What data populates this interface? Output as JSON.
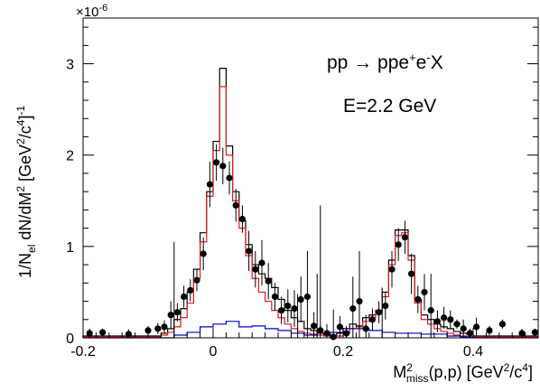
{
  "chart_data": {
    "type": "scatter",
    "multiplier_label": "×10",
    "multiplier_exponent": "-6",
    "ylabel": {
      "p1": "1/N",
      "p2": "el",
      "p3": " dN/dM",
      "p4": "2",
      "p5": " [GeV",
      "p6": "2",
      "p7": "/c",
      "p8": "4",
      "p9": "]",
      "p10": "-1"
    },
    "xlabel": {
      "p1": "M",
      "p2": "2",
      "p3": "miss",
      "p4": "(p,p) [GeV",
      "p5": "2",
      "p6": "/c",
      "p7": "4",
      "p8": "]"
    },
    "annotation_reaction": {
      "p1": "pp → ppe",
      "p2": "+",
      "p3": "e",
      "p4": "-",
      "p5": "X"
    },
    "annotation_energy": "E=2.2 GeV",
    "xlim": [
      -0.2,
      0.5
    ],
    "ylim": [
      0,
      3.5
    ],
    "x_ticks": [
      -0.2,
      0,
      0.2,
      0.4
    ],
    "x_tick_labels": [
      "-0.2",
      "0",
      "0.2",
      "0.4"
    ],
    "y_ticks": [
      0,
      1,
      2,
      3
    ],
    "y_tick_labels": [
      "0",
      "1",
      "2",
      "3"
    ],
    "colors": {
      "black": "#000000",
      "red": "#e41a1c",
      "blue": "#0000cc"
    },
    "data_points": {
      "name": "",
      "x": [
        -0.19,
        -0.17,
        -0.13,
        -0.1,
        -0.085,
        -0.075,
        -0.065,
        -0.055,
        -0.045,
        -0.035,
        -0.025,
        -0.015,
        -0.005,
        0.005,
        0.015,
        0.025,
        0.035,
        0.045,
        0.055,
        0.065,
        0.075,
        0.085,
        0.095,
        0.105,
        0.115,
        0.125,
        0.135,
        0.145,
        0.155,
        0.165,
        0.175,
        0.185,
        0.195,
        0.205,
        0.215,
        0.225,
        0.235,
        0.245,
        0.255,
        0.265,
        0.275,
        0.285,
        0.295,
        0.305,
        0.315,
        0.325,
        0.335,
        0.345,
        0.355,
        0.365,
        0.375,
        0.385,
        0.395,
        0.405,
        0.425,
        0.445,
        0.475,
        0.495
      ],
      "y": [
        0.05,
        0.06,
        0.04,
        0.08,
        0.1,
        0.12,
        0.25,
        0.28,
        0.45,
        0.52,
        0.63,
        0.92,
        1.68,
        1.92,
        1.88,
        1.75,
        1.45,
        1.3,
        0.95,
        0.75,
        0.82,
        0.62,
        0.45,
        0.3,
        0.35,
        0.32,
        0.42,
        0.45,
        0.13,
        0.08,
        0.05,
        0.01,
        0.12,
        0.05,
        0.32,
        0.4,
        0.1,
        0.2,
        0.28,
        0.35,
        0.75,
        1.02,
        1.1,
        0.7,
        0.42,
        0.5,
        0.3,
        0.18,
        0.22,
        0.2,
        0.15,
        0.1,
        0.05,
        0.12,
        0.08,
        0.15,
        0.05,
        0.06
      ],
      "err": [
        0.05,
        0.04,
        0.05,
        0.05,
        0.06,
        0.07,
        0.15,
        0.1,
        0.12,
        0.12,
        0.12,
        0.18,
        0.25,
        0.2,
        0.2,
        0.18,
        0.18,
        0.15,
        0.22,
        0.2,
        0.25,
        0.2,
        0.15,
        0.15,
        0.18,
        0.2,
        0.25,
        0.5,
        0.15,
        0.05,
        0.1,
        0.3,
        0.12,
        0.08,
        0.35,
        0.55,
        0.15,
        0.12,
        0.12,
        0.15,
        0.2,
        0.18,
        0.18,
        0.22,
        0.15,
        0.2,
        0.4,
        0.12,
        0.12,
        0.1,
        0.05,
        0.1,
        0.05,
        0.1,
        0.05,
        0.05,
        0.05,
        0.04
      ],
      "vertical_lines": [
        [
          -0.06,
          0.0,
          1.05
        ],
        [
          0.13,
          0.0,
          0.48
        ],
        [
          0.165,
          0.0,
          1.45
        ],
        [
          0.16,
          0.0,
          0.7
        ],
        [
          0.26,
          0.0,
          0.55
        ]
      ]
    },
    "series": [
      {
        "name": "",
        "color_key": "black",
        "edges": [
          -0.2,
          -0.08,
          -0.07,
          -0.06,
          -0.05,
          -0.04,
          -0.03,
          -0.02,
          -0.01,
          0.0,
          0.01,
          0.02,
          0.03,
          0.04,
          0.05,
          0.06,
          0.07,
          0.08,
          0.09,
          0.1,
          0.11,
          0.12,
          0.13,
          0.14,
          0.15,
          0.16,
          0.17,
          0.18,
          0.19,
          0.2,
          0.21,
          0.22,
          0.23,
          0.24,
          0.25,
          0.26,
          0.27,
          0.28,
          0.29,
          0.3,
          0.31,
          0.32,
          0.33,
          0.34,
          0.35,
          0.36,
          0.37,
          0.38,
          0.39,
          0.4,
          0.5
        ],
        "values": [
          0.02,
          0.05,
          0.1,
          0.2,
          0.32,
          0.5,
          0.75,
          1.15,
          1.6,
          2.15,
          2.95,
          2.1,
          1.6,
          1.28,
          1.02,
          0.8,
          0.7,
          0.65,
          0.55,
          0.42,
          0.3,
          0.22,
          0.18,
          0.1,
          0.08,
          0.05,
          0.04,
          0.02,
          0.05,
          0.1,
          0.15,
          0.13,
          0.22,
          0.25,
          0.3,
          0.5,
          0.85,
          1.18,
          1.18,
          0.9,
          0.42,
          0.25,
          0.2,
          0.15,
          0.12,
          0.1,
          0.07,
          0.05,
          0.04,
          0.02
        ]
      },
      {
        "name": "",
        "color_key": "red",
        "edges": [
          -0.2,
          -0.08,
          -0.07,
          -0.06,
          -0.05,
          -0.04,
          -0.03,
          -0.02,
          -0.01,
          0.0,
          0.01,
          0.02,
          0.03,
          0.04,
          0.05,
          0.06,
          0.07,
          0.08,
          0.09,
          0.1,
          0.11,
          0.12,
          0.13,
          0.14,
          0.15,
          0.16,
          0.17,
          0.18,
          0.19,
          0.2,
          0.21,
          0.22,
          0.23,
          0.24,
          0.25,
          0.26,
          0.27,
          0.28,
          0.29,
          0.3,
          0.31,
          0.32,
          0.33,
          0.34,
          0.35,
          0.36,
          0.37,
          0.38,
          0.39,
          0.4,
          0.5
        ],
        "values": [
          0.01,
          0.03,
          0.06,
          0.12,
          0.22,
          0.38,
          0.65,
          1.05,
          1.55,
          2.05,
          2.75,
          2.0,
          1.5,
          1.2,
          0.9,
          0.65,
          0.5,
          0.4,
          0.3,
          0.22,
          0.15,
          0.1,
          0.07,
          0.05,
          0.04,
          0.03,
          0.02,
          0.01,
          0.02,
          0.05,
          0.1,
          0.12,
          0.18,
          0.22,
          0.28,
          0.45,
          0.8,
          1.12,
          1.15,
          0.85,
          0.38,
          0.2,
          0.15,
          0.1,
          0.07,
          0.05,
          0.03,
          0.02,
          0.01,
          0.01
        ]
      },
      {
        "name": "",
        "color_key": "blue",
        "edges": [
          -0.2,
          -0.06,
          -0.04,
          -0.02,
          0.0,
          0.02,
          0.04,
          0.06,
          0.08,
          0.1,
          0.12,
          0.14,
          0.16,
          0.18,
          0.2,
          0.22,
          0.24,
          0.26,
          0.28,
          0.3,
          0.32,
          0.34,
          0.36,
          0.38,
          0.4,
          0.5
        ],
        "values": [
          0.0,
          0.03,
          0.06,
          0.12,
          0.15,
          0.18,
          0.12,
          0.13,
          0.1,
          0.08,
          0.05,
          0.03,
          0.05,
          0.06,
          0.1,
          0.1,
          0.08,
          0.06,
          0.05,
          0.05,
          0.04,
          0.04,
          0.02,
          0.01,
          0.0
        ]
      }
    ]
  }
}
